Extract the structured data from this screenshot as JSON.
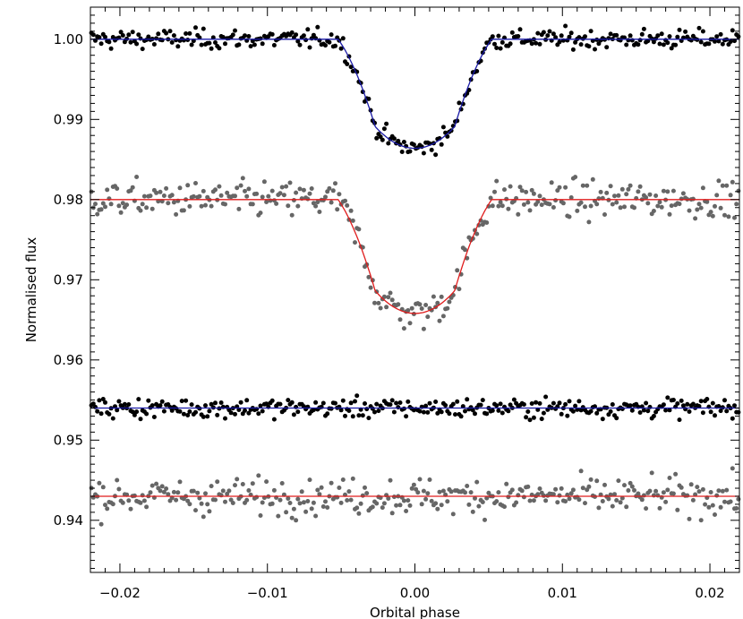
{
  "chart_data": {
    "type": "scatter",
    "xlabel": "Orbital phase",
    "ylabel": "Normalised flux",
    "xlim": [
      -0.022,
      0.022
    ],
    "ylim": [
      0.9335,
      1.004
    ],
    "grid": false,
    "legend": "none",
    "x_ticks": [
      {
        "value": -0.02,
        "label": "−0.02"
      },
      {
        "value": -0.01,
        "label": "−0.01"
      },
      {
        "value": 0.0,
        "label": "0.00"
      },
      {
        "value": 0.01,
        "label": "0.01"
      },
      {
        "value": 0.02,
        "label": "0.02"
      }
    ],
    "y_ticks": [
      {
        "value": 0.94,
        "label": "0.94"
      },
      {
        "value": 0.95,
        "label": "0.95"
      },
      {
        "value": 0.96,
        "label": "0.96"
      },
      {
        "value": 0.97,
        "label": "0.97"
      },
      {
        "value": 0.98,
        "label": "0.98"
      },
      {
        "value": 0.99,
        "label": "0.99"
      },
      {
        "value": 1.0,
        "label": "1.00"
      }
    ],
    "series": [
      {
        "role": "transit",
        "baseline": 1.0,
        "depth": 0.0136,
        "point_color": "#000000",
        "line_color": "#1a1aa6",
        "scatter": 0.0006,
        "n_points": 330,
        "model": {
          "contact_1": -0.0052,
          "contact_2": -0.0027,
          "contact_3": 0.0027,
          "contact_4": 0.0052
        }
      },
      {
        "role": "transit",
        "baseline": 0.98,
        "depth": 0.0142,
        "point_color": "#666666",
        "line_color": "#e01c1c",
        "scatter": 0.0011,
        "n_points": 330,
        "model": {
          "contact_1": -0.0052,
          "contact_2": -0.0027,
          "contact_3": 0.0027,
          "contact_4": 0.0052
        }
      },
      {
        "role": "residuals",
        "baseline": 0.954,
        "point_color": "#000000",
        "line_color": "#1a1aa6",
        "scatter": 0.0006,
        "n_points": 330
      },
      {
        "role": "residuals",
        "baseline": 0.943,
        "point_color": "#666666",
        "line_color": "#e01c1c",
        "scatter": 0.0011,
        "n_points": 330
      }
    ]
  }
}
